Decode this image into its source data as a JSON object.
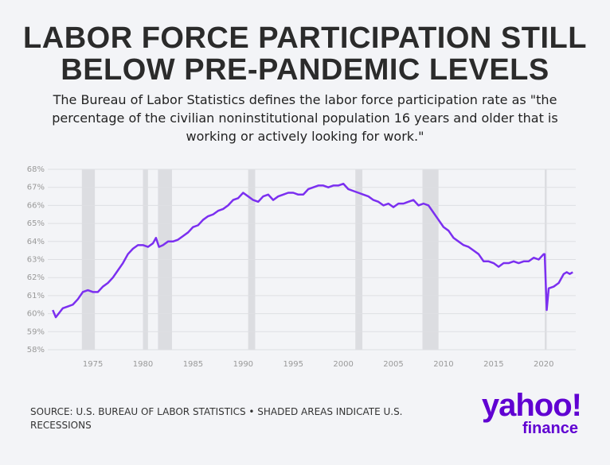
{
  "chart_data": {
    "type": "line",
    "title": "LABOR FORCE PARTICIPATION STILL BELOW PRE-PANDEMIC LEVELS",
    "subtitle": "The Bureau of Labor Statistics defines the labor force participation rate as \"the percentage of the civilian noninstitutional population 16 years and older that is working or actively looking for work.\"",
    "source": "SOURCE: U.S. BUREAU OF LABOR STATISTICS • SHADED AREAS INDICATE U.S. RECESSIONS",
    "logo": [
      "yahoo!",
      "finance"
    ],
    "x": [
      1971,
      1971.3,
      1972,
      1972.5,
      1973,
      1973.5,
      1974,
      1974.5,
      1975,
      1975.5,
      1976,
      1976.5,
      1977,
      1977.5,
      1978,
      1978.5,
      1979,
      1979.5,
      1980,
      1980.5,
      1981,
      1981.3,
      1981.6,
      1982,
      1982.5,
      1983,
      1983.5,
      1984,
      1984.5,
      1985,
      1985.5,
      1986,
      1986.5,
      1987,
      1987.5,
      1988,
      1988.5,
      1989,
      1989.5,
      1990,
      1990.5,
      1991,
      1991.5,
      1992,
      1992.5,
      1993,
      1993.5,
      1994,
      1994.5,
      1995,
      1995.5,
      1996,
      1996.5,
      1997,
      1997.5,
      1998,
      1998.5,
      1999,
      1999.5,
      2000,
      2000.5,
      2001,
      2001.5,
      2002,
      2002.5,
      2003,
      2003.5,
      2004,
      2004.5,
      2005,
      2005.5,
      2006,
      2006.5,
      2007,
      2007.5,
      2008,
      2008.5,
      2009,
      2009.5,
      2010,
      2010.5,
      2011,
      2011.5,
      2012,
      2012.5,
      2013,
      2013.5,
      2014,
      2014.5,
      2015,
      2015.5,
      2016,
      2016.5,
      2017,
      2017.5,
      2018,
      2018.5,
      2019,
      2019.5,
      2020,
      2020.1,
      2020.3,
      2020.5,
      2021,
      2021.5,
      2022,
      2022.3,
      2022.6,
      2022.9
    ],
    "series": [
      {
        "color": "#7b2ff0",
        "values": [
          60.2,
          59.8,
          60.3,
          60.4,
          60.5,
          60.8,
          61.2,
          61.3,
          61.2,
          61.2,
          61.5,
          61.7,
          62.0,
          62.4,
          62.8,
          63.3,
          63.6,
          63.8,
          63.8,
          63.7,
          63.9,
          64.2,
          63.7,
          63.8,
          64.0,
          64.0,
          64.1,
          64.3,
          64.5,
          64.8,
          64.9,
          65.2,
          65.4,
          65.5,
          65.7,
          65.8,
          66.0,
          66.3,
          66.4,
          66.7,
          66.5,
          66.3,
          66.2,
          66.5,
          66.6,
          66.3,
          66.5,
          66.6,
          66.7,
          66.7,
          66.6,
          66.6,
          66.9,
          67.0,
          67.1,
          67.1,
          67.0,
          67.1,
          67.1,
          67.2,
          66.9,
          66.8,
          66.7,
          66.6,
          66.5,
          66.3,
          66.2,
          66.0,
          66.1,
          65.9,
          66.1,
          66.1,
          66.2,
          66.3,
          66.0,
          66.1,
          66.0,
          65.6,
          65.2,
          64.8,
          64.6,
          64.2,
          64.0,
          63.8,
          63.7,
          63.5,
          63.3,
          62.9,
          62.9,
          62.8,
          62.6,
          62.8,
          62.8,
          62.9,
          62.8,
          62.9,
          62.9,
          63.1,
          63.0,
          63.3,
          63.3,
          60.2,
          61.4,
          61.5,
          61.7,
          62.2,
          62.3,
          62.2,
          62.3
        ]
      }
    ],
    "recessions": [
      [
        1973.9,
        1975.2
      ],
      [
        1980.0,
        1980.5
      ],
      [
        1981.5,
        1982.9
      ],
      [
        1990.5,
        1991.2
      ],
      [
        2001.2,
        2001.9
      ],
      [
        2007.9,
        2009.5
      ],
      [
        2020.1,
        2020.3
      ]
    ],
    "recession_color": "#dcdde1",
    "xlim": [
      1970.5,
      2023.2
    ],
    "xticks": [
      1975,
      1980,
      1985,
      1990,
      1995,
      2000,
      2005,
      2010,
      2015,
      2020
    ],
    "ylim": [
      58,
      68
    ],
    "yticks": [
      {
        "value": 58,
        "label": "58%"
      },
      {
        "value": 59,
        "label": "59%"
      },
      {
        "value": 60,
        "label": "60%"
      },
      {
        "value": 61,
        "label": "61%"
      },
      {
        "value": 62,
        "label": "62%"
      },
      {
        "value": 63,
        "label": "63%"
      },
      {
        "value": 64,
        "label": "64%"
      },
      {
        "value": 65,
        "label": "65%"
      },
      {
        "value": 66,
        "label": "66%"
      },
      {
        "value": 67,
        "label": "67%"
      },
      {
        "value": 68,
        "label": "68%"
      }
    ],
    "grid": true
  }
}
